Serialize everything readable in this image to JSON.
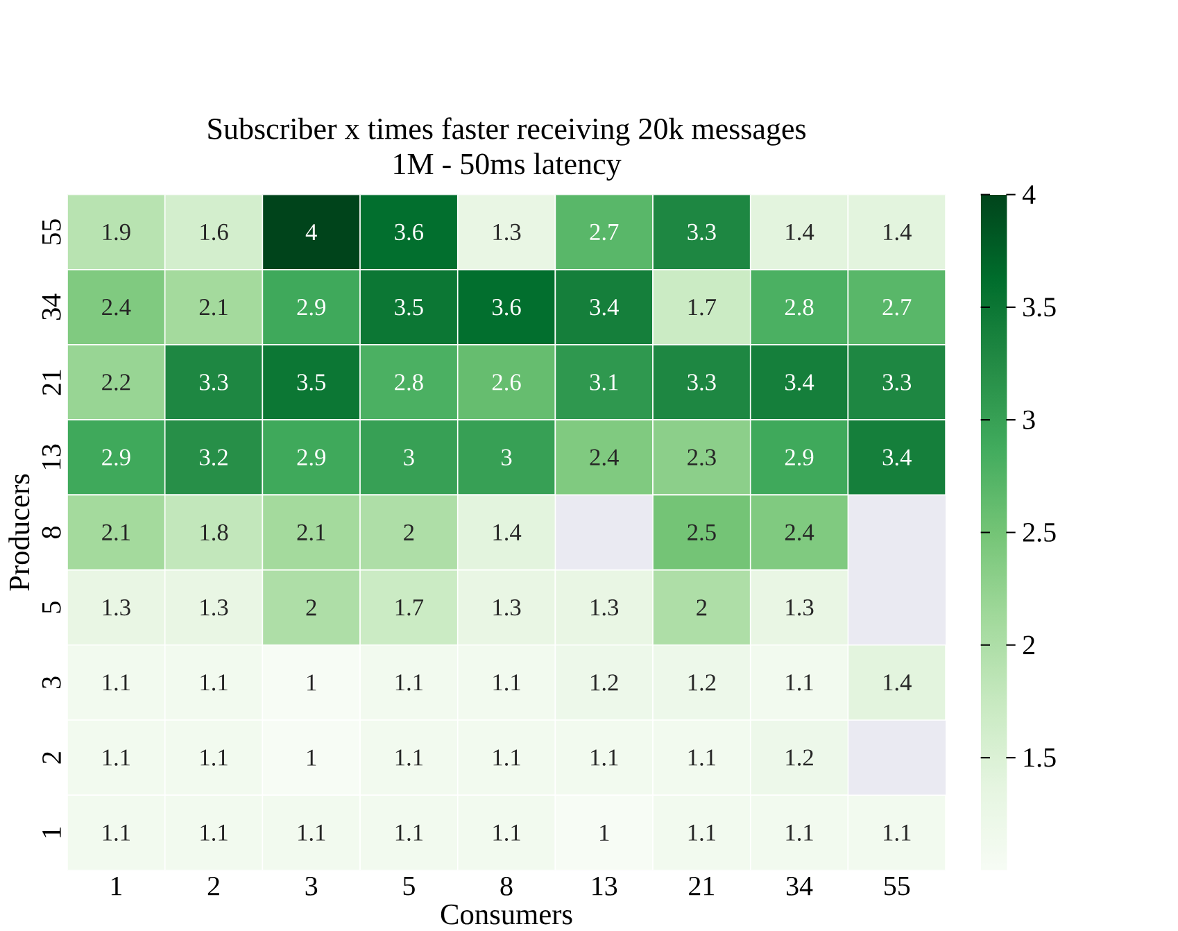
{
  "chart_data": {
    "type": "heatmap",
    "title": "Subscriber x times faster receiving 20k messages",
    "subtitle": "1M - 50ms latency",
    "xlabel": "Consumers",
    "ylabel": "Producers",
    "categories": [
      "1",
      "2",
      "3",
      "5",
      "8",
      "13",
      "21",
      "34",
      "55"
    ],
    "y_categories": [
      "55",
      "34",
      "21",
      "13",
      "8",
      "5",
      "3",
      "2",
      "1"
    ],
    "cells": [
      [
        1.9,
        1.6,
        4,
        3.6,
        1.3,
        2.7,
        3.3,
        1.4,
        1.4
      ],
      [
        2.4,
        2.1,
        2.9,
        3.5,
        3.6,
        3.4,
        1.7,
        2.8,
        2.7
      ],
      [
        2.2,
        3.3,
        3.5,
        2.8,
        2.6,
        3.1,
        3.3,
        3.4,
        3.3
      ],
      [
        2.9,
        3.2,
        2.9,
        3,
        3,
        2.4,
        2.3,
        2.9,
        3.4
      ],
      [
        2.1,
        1.8,
        2.1,
        2,
        1.4,
        null,
        2.5,
        2.4,
        null
      ],
      [
        1.3,
        1.3,
        2,
        1.7,
        1.3,
        1.3,
        2,
        1.3,
        null
      ],
      [
        1.1,
        1.1,
        1,
        1.1,
        1.1,
        1.2,
        1.2,
        1.1,
        1.4
      ],
      [
        1.1,
        1.1,
        1,
        1.1,
        1.1,
        1.1,
        1.1,
        1.2,
        null
      ],
      [
        1.1,
        1.1,
        1.1,
        1.1,
        1.1,
        1,
        1.1,
        1.1,
        1.1
      ]
    ],
    "data_labels": true,
    "clim": [
      1,
      4
    ],
    "cticks": [
      1.5,
      2,
      2.5,
      3,
      3.5,
      4
    ]
  }
}
